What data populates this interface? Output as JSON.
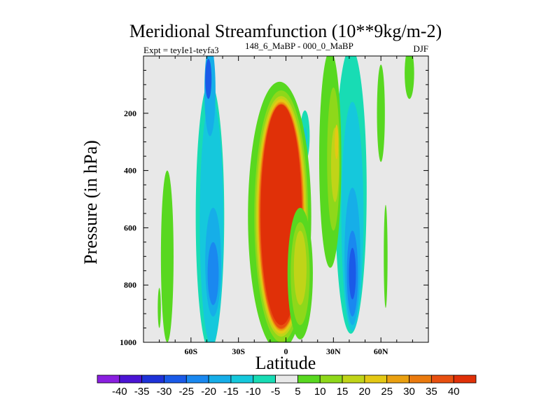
{
  "chart_data": {
    "type": "heatmap",
    "title": "Meridional Streamfunction (10**9kg/m-2)",
    "subtitle_left": "Expt = teyIe1-teyfa3",
    "subtitle_left_sup": "148_6_MaBP - 000_0_MaBP",
    "season": "DJF",
    "xlabel": "Latitude",
    "ylabel": "Pressure (in hPa)",
    "xlim": [
      -90,
      90
    ],
    "ylim": [
      1000,
      0
    ],
    "x_ticks": [
      {
        "v": -60,
        "label": "60S"
      },
      {
        "v": -30,
        "label": "30S"
      },
      {
        "v": 0,
        "label": "0"
      },
      {
        "v": 30,
        "label": "30N"
      },
      {
        "v": 60,
        "label": "60N"
      }
    ],
    "y_ticks": [
      {
        "v": 200,
        "label": "200"
      },
      {
        "v": 400,
        "label": "400"
      },
      {
        "v": 600,
        "label": "600"
      },
      {
        "v": 800,
        "label": "800"
      },
      {
        "v": 1000,
        "label": "1000"
      }
    ],
    "levels": [
      "-40",
      "-35",
      "-30",
      "-25",
      "-20",
      "-15",
      "-10",
      "-5",
      "5",
      "10",
      "15",
      "20",
      "25",
      "30",
      "35",
      "40"
    ],
    "colors": [
      "#8a1fe0",
      "#4b14d4",
      "#1e32d8",
      "#1a5ae8",
      "#1a88f0",
      "#16aee8",
      "#15c8dc",
      "#18dcb4",
      "#e8e8e8",
      "#58d820",
      "#8ed81a",
      "#c0d418",
      "#e4c814",
      "#eaa010",
      "#ea7a0e",
      "#e85010",
      "#e03008"
    ],
    "background_color": "#e8e8e8",
    "features": [
      {
        "label": "-5",
        "lat": -48,
        "p": 560,
        "rlat": 9,
        "rp": 470
      },
      {
        "label": "-10",
        "lat": -47,
        "p": 580,
        "rlat": 7.5,
        "rp": 430
      },
      {
        "label": "-15",
        "lat": -46,
        "p": 720,
        "rlat": 5,
        "rp": 190
      },
      {
        "label": "-20",
        "lat": -46,
        "p": 760,
        "rlat": 3.5,
        "rp": 110
      },
      {
        "label": "-15",
        "lat": -48,
        "p": 120,
        "rlat": 3.5,
        "rp": 160
      },
      {
        "label": "-25",
        "lat": -49,
        "p": 80,
        "rlat": 2,
        "rp": 70
      },
      {
        "label": "5",
        "lat": -75,
        "p": 700,
        "rlat": 4,
        "rp": 300
      },
      {
        "label": "5",
        "lat": -80,
        "p": 880,
        "rlat": 1,
        "rp": 70
      },
      {
        "label": "-5",
        "lat": 41,
        "p": 470,
        "rlat": 10,
        "rp": 500
      },
      {
        "label": "-10",
        "lat": 42,
        "p": 560,
        "rlat": 7,
        "rp": 400
      },
      {
        "label": "-15",
        "lat": 42,
        "p": 700,
        "rlat": 5,
        "rp": 240
      },
      {
        "label": "-20",
        "lat": 42,
        "p": 760,
        "rlat": 3.5,
        "rp": 150
      },
      {
        "label": "-25",
        "lat": 42,
        "p": 760,
        "rlat": 2.2,
        "rp": 90
      },
      {
        "label": "-5",
        "lat": 12,
        "p": 280,
        "rlat": 3,
        "rp": 90
      },
      {
        "label": "-10",
        "lat": 12,
        "p": 290,
        "rlat": 1.5,
        "rp": 40
      },
      {
        "label": "5",
        "lat": 28,
        "p": 360,
        "rlat": 7,
        "rp": 380
      },
      {
        "label": "10",
        "lat": 30,
        "p": 360,
        "rlat": 4,
        "rp": 250
      },
      {
        "label": "15",
        "lat": 31,
        "p": 380,
        "rlat": 2.5,
        "rp": 130
      },
      {
        "label": "20",
        "lat": 32,
        "p": 300,
        "rlat": 1.2,
        "rp": 60
      },
      {
        "label": "5",
        "lat": 60,
        "p": 200,
        "rlat": 2.5,
        "rp": 170
      },
      {
        "label": "5",
        "lat": 63,
        "p": 700,
        "rlat": 1.2,
        "rp": 180
      },
      {
        "label": "5",
        "lat": 78,
        "p": 60,
        "rlat": 3,
        "rp": 90
      },
      {
        "label": "5",
        "lat": -4,
        "p": 560,
        "rlat": 20,
        "rp": 470
      },
      {
        "label": "10",
        "lat": -3,
        "p": 560,
        "rlat": 17,
        "rp": 440
      },
      {
        "label": "15",
        "lat": -3,
        "p": 560,
        "rlat": 16,
        "rp": 420
      },
      {
        "label": "20",
        "lat": -3,
        "p": 560,
        "rlat": 15,
        "rp": 410
      },
      {
        "label": "25",
        "lat": -3,
        "p": 560,
        "rlat": 14.5,
        "rp": 400
      },
      {
        "label": "30",
        "lat": -3,
        "p": 560,
        "rlat": 14,
        "rp": 395
      },
      {
        "label": "35",
        "lat": -3,
        "p": 560,
        "rlat": 13.5,
        "rp": 392
      },
      {
        "label": "40",
        "lat": -3,
        "p": 555,
        "rlat": 13,
        "rp": 385
      },
      {
        "label": "5",
        "lat": 9,
        "p": 760,
        "rlat": 8,
        "rp": 230
      },
      {
        "label": "10",
        "lat": 9,
        "p": 760,
        "rlat": 6,
        "rp": 180
      },
      {
        "label": "15",
        "lat": 9,
        "p": 740,
        "rlat": 4,
        "rp": 130
      }
    ]
  }
}
